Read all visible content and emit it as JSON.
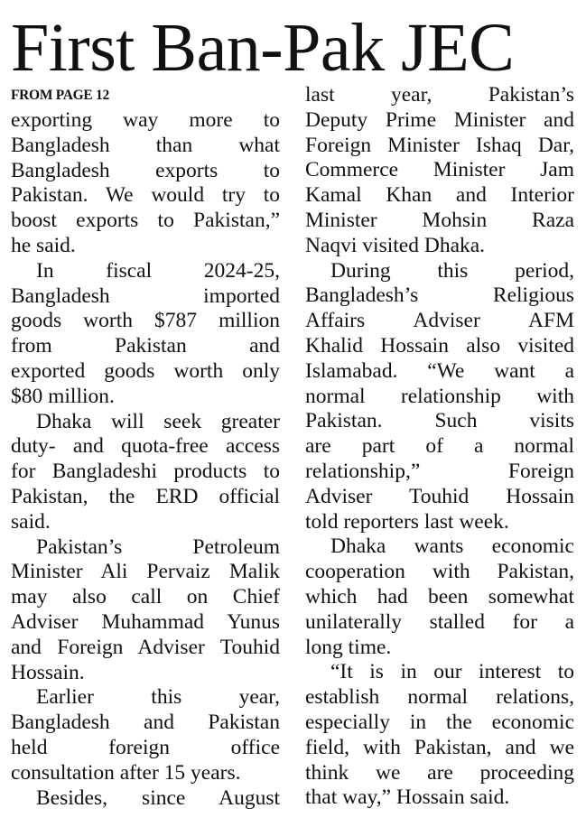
{
  "headline": "First Ban-Pak JEC",
  "kicker": "FROM PAGE 12",
  "columns": [
    {
      "paragraphs": [
        {
          "indent": false,
          "lines": [
            "exporting way more to",
            "Bangladesh than what",
            "Bangladesh exports to",
            "Pakistan. We would try to",
            "boost exports to Pakistan,”",
            "he said."
          ]
        },
        {
          "indent": true,
          "lines": [
            "In fiscal 2024-25,",
            "Bangladesh imported",
            "goods worth $787 million",
            "from Pakistan and",
            "exported goods worth only",
            "$80 million."
          ]
        },
        {
          "indent": true,
          "lines": [
            "Dhaka will seek greater",
            "duty- and quota-free access",
            "for Bangladeshi products to",
            "Pakistan, the ERD official",
            "said."
          ]
        },
        {
          "indent": true,
          "lines": [
            "Pakistan’s Petroleum",
            "Minister Ali Pervaiz Malik",
            "may also call on Chief",
            "Adviser Muhammad Yunus",
            "and Foreign Adviser Touhid",
            "Hossain."
          ]
        },
        {
          "indent": true,
          "lines": [
            "Earlier this year,",
            "Bangladesh and Pakistan",
            "held foreign office",
            "consultation after 15 years."
          ]
        },
        {
          "indent": true,
          "continues": true,
          "lines": [
            "Besides, since August"
          ]
        }
      ]
    },
    {
      "paragraphs": [
        {
          "indent": false,
          "lines": [
            "last year, Pakistan’s",
            "Deputy Prime Minister and",
            "Foreign Minister Ishaq Dar,",
            "Commerce Minister Jam",
            "Kamal Khan and Interior",
            "Minister Mohsin Raza",
            "Naqvi visited Dhaka."
          ]
        },
        {
          "indent": true,
          "lines": [
            "During this period,",
            "Bangladesh’s Religious",
            "Affairs Adviser AFM",
            "Khalid Hossain also visited",
            "Islamabad. “We want a",
            "normal relationship with",
            "Pakistan. Such visits",
            "are part of a normal",
            "relationship,” Foreign",
            "Adviser Touhid Hossain",
            "told reporters last week."
          ]
        },
        {
          "indent": true,
          "lines": [
            "Dhaka wants economic",
            "cooperation with Pakistan,",
            "which had been somewhat",
            "unilaterally stalled for a",
            "long time."
          ]
        },
        {
          "indent": true,
          "lines": [
            "“It is in our interest to",
            "establish normal relations,",
            "especially in the economic",
            "field, with Pakistan, and we",
            "think we are proceeding",
            "that way,” Hossain said."
          ]
        }
      ]
    }
  ]
}
